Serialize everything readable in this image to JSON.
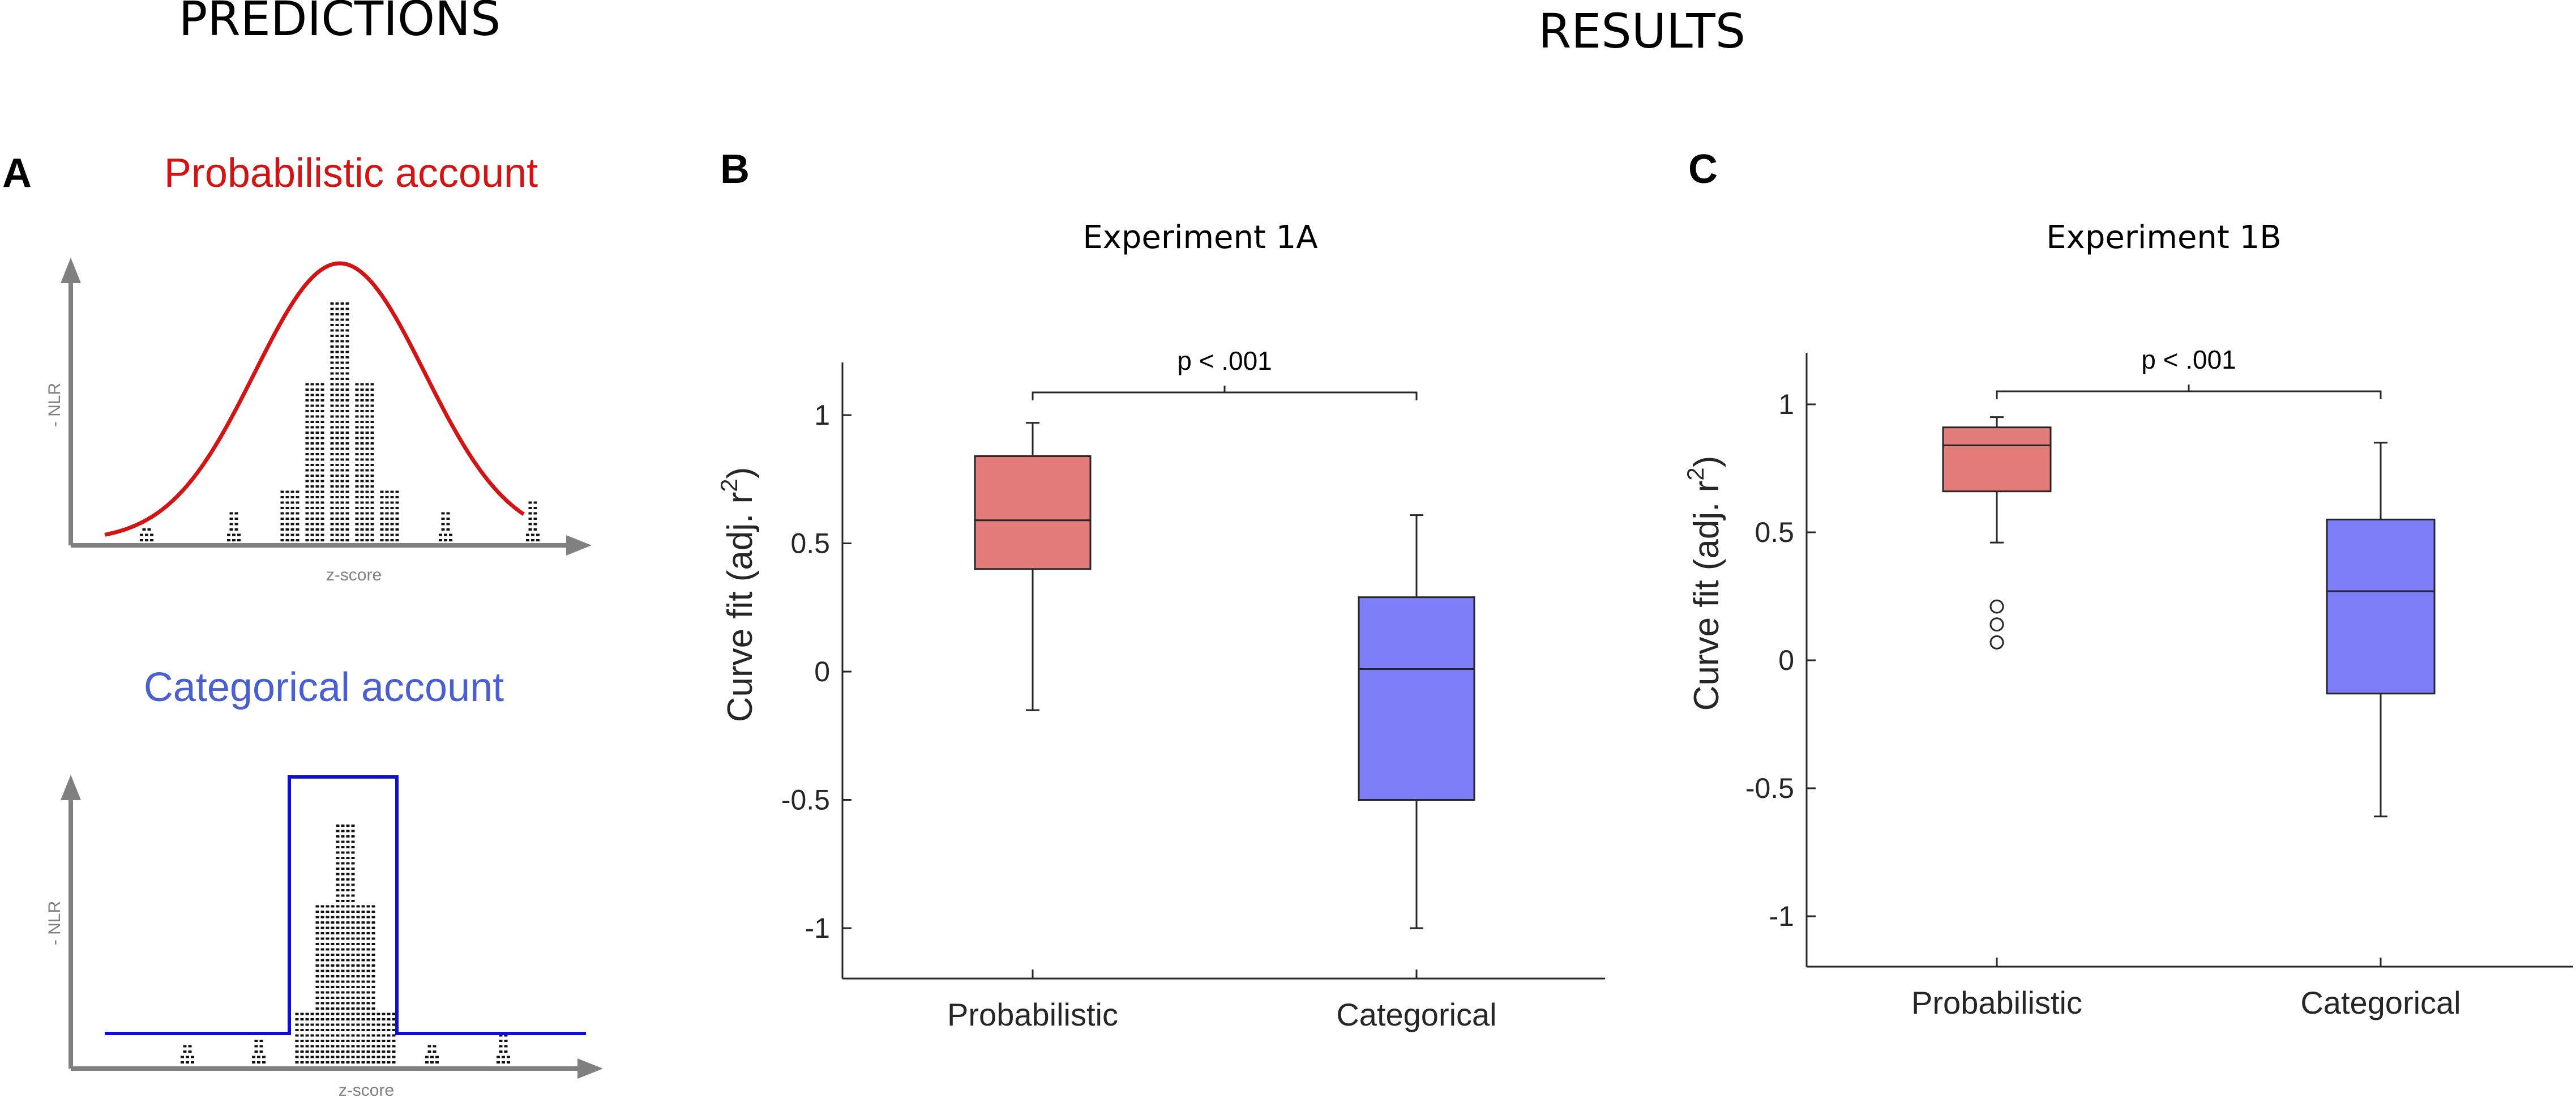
{
  "figure": {
    "predictions_heading": "PREDICTIONS",
    "results_heading": "RESULTS"
  },
  "panel_a": {
    "letter": "A",
    "probabilistic": {
      "title": "Probabilistic account",
      "ylabel": "- NLR",
      "xlabel": "z-score",
      "color": "#d21414"
    },
    "categorical": {
      "title": "Categorical account",
      "ylabel": "- NLR",
      "xlabel": "z-score",
      "color": "#1010cc"
    },
    "title_colors": {
      "probabilistic": "#d21414",
      "categorical": "#4a5fd0"
    },
    "axis_color": "#808080",
    "dot_color": "#111111"
  },
  "panel_b": {
    "letter": "B",
    "title": "Experiment 1A",
    "ylabel_main": "Curve fit (adj. r",
    "ylabel_sup": "2",
    "ylabel_tail": ")",
    "significance": "p < .001",
    "colors": {
      "probabilistic": "#e37b7b",
      "categorical": "#7e7ef8"
    }
  },
  "panel_c": {
    "letter": "C",
    "title": "Experiment 1B",
    "ylabel_main": "Curve fit (adj. r",
    "ylabel_sup": "2",
    "ylabel_tail": ")",
    "significance": "p < .001",
    "colors": {
      "probabilistic": "#e37b7b",
      "categorical": "#7e7ef8"
    }
  },
  "chart_data": [
    {
      "type": "line",
      "panel": "A-top",
      "title": "Probabilistic account",
      "xlabel": "z-score",
      "ylabel": "- NLR",
      "series": [
        {
          "name": "Probabilistic prediction",
          "shape": "gaussian",
          "mean": 0,
          "sd": 1
        }
      ],
      "histogram": {
        "x": [
          -3.1,
          -1.7,
          -0.8,
          -0.4,
          0,
          0.4,
          0.8,
          1.7,
          3.1
        ],
        "counts": [
          3,
          6,
          10,
          30,
          45,
          30,
          10,
          6,
          8
        ]
      }
    },
    {
      "type": "line",
      "panel": "A-bottom",
      "title": "Categorical account",
      "xlabel": "z-score",
      "ylabel": "- NLR",
      "series": [
        {
          "name": "Categorical prediction",
          "shape": "step",
          "low": 0.1,
          "high": 1,
          "edges": [
            -1,
            1
          ]
        }
      ],
      "histogram": {
        "x": [
          -3.1,
          -1.7,
          -0.8,
          -0.4,
          0,
          0.4,
          0.8,
          1.7,
          3.1
        ],
        "counts": [
          4,
          5,
          10,
          30,
          45,
          30,
          10,
          4,
          6
        ]
      }
    },
    {
      "type": "box",
      "panel": "B",
      "title": "Experiment 1A",
      "ylabel": "Curve fit (adj. r2)",
      "categories": [
        "Probabilistic",
        "Categorical"
      ],
      "ylim": [
        -1.2,
        1.2
      ],
      "yticks": [
        "-1",
        "-0.5",
        "0",
        "0.5",
        "1"
      ],
      "ytick_values": [
        -1,
        -0.5,
        0,
        0.5,
        1
      ],
      "boxes": [
        {
          "name": "Probabilistic",
          "whisker_low": -0.15,
          "q1": 0.4,
          "median": 0.59,
          "q3": 0.84,
          "whisker_high": 0.97,
          "outliers": []
        },
        {
          "name": "Categorical",
          "whisker_low": -1.0,
          "q1": -0.5,
          "median": 0.01,
          "q3": 0.29,
          "whisker_high": 0.61,
          "outliers": []
        }
      ],
      "annotation": "p < .001"
    },
    {
      "type": "box",
      "panel": "C",
      "title": "Experiment 1B",
      "ylabel": "Curve fit (adj. r2)",
      "categories": [
        "Probabilistic",
        "Categorical"
      ],
      "ylim": [
        -1.2,
        1.2
      ],
      "yticks": [
        "-1",
        "-0.5",
        "0",
        "0.5",
        "1"
      ],
      "ytick_values": [
        -1,
        -0.5,
        0,
        0.5,
        1
      ],
      "boxes": [
        {
          "name": "Probabilistic",
          "whisker_low": 0.46,
          "q1": 0.66,
          "median": 0.84,
          "q3": 0.91,
          "whisker_high": 0.95,
          "outliers": [
            0.07,
            0.14,
            0.21
          ]
        },
        {
          "name": "Categorical",
          "whisker_low": -0.61,
          "q1": -0.13,
          "median": 0.27,
          "q3": 0.55,
          "whisker_high": 0.85,
          "outliers": []
        }
      ],
      "annotation": "p < .001"
    }
  ]
}
